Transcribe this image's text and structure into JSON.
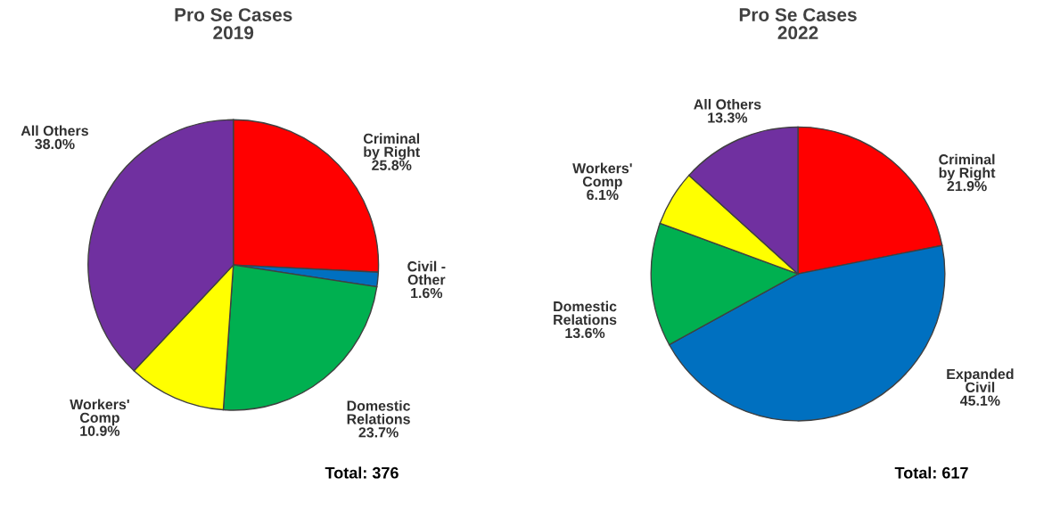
{
  "chart_data": [
    {
      "type": "pie",
      "title": "Pro Se Cases\n2019",
      "categories": [
        "Criminal\nby Right",
        "Civil -\nOther",
        "Domestic\nRelations",
        "Workers'\nComp",
        "All Others"
      ],
      "values": [
        25.8,
        1.6,
        23.7,
        10.9,
        38.0
      ],
      "colors": [
        "#ff0000",
        "#0070c0",
        "#00b050",
        "#ffff00",
        "#7030a0"
      ],
      "value_labels": [
        "25.8%",
        "1.6%",
        "23.7%",
        "10.9%",
        "38.0%"
      ],
      "annotations": [
        "Total: 376"
      ]
    },
    {
      "type": "pie",
      "title": "Pro Se Cases\n2022",
      "categories": [
        "Criminal\nby Right",
        "Expanded\nCivil",
        "Domestic\nRelations",
        "Workers'\nComp",
        "All Others"
      ],
      "values": [
        21.9,
        45.1,
        13.6,
        6.1,
        13.3
      ],
      "colors": [
        "#ff0000",
        "#0070c0",
        "#00b050",
        "#ffff00",
        "#7030a0"
      ],
      "value_labels": [
        "21.9%",
        "45.1%",
        "13.6%",
        "6.1%",
        "13.3%"
      ],
      "annotations": [
        "Total: 617"
      ]
    }
  ]
}
